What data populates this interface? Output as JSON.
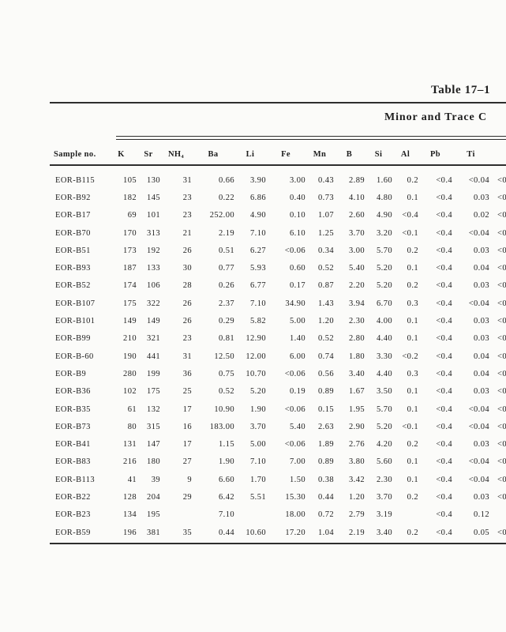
{
  "page": {
    "title": "Table 17–1",
    "subtitle": "Minor and Trace C"
  },
  "table": {
    "sample_header": "Sample no.",
    "columns": [
      "K",
      "Sr",
      "NH₄",
      "Ba",
      "Li",
      "Fe",
      "Mn",
      "B",
      "Si",
      "Al",
      "Pb",
      "Ti",
      ""
    ],
    "rows": [
      {
        "sample": "EOR-B115",
        "values": [
          "105",
          "130",
          "31",
          "0.66",
          "3.90",
          "3.00",
          "0.43",
          "2.89",
          "1.60",
          "0.2",
          "<0.4",
          "<0.04",
          "<0"
        ]
      },
      {
        "sample": "EOR-B92",
        "values": [
          "182",
          "145",
          "23",
          "0.22",
          "6.86",
          "0.40",
          "0.73",
          "4.10",
          "4.80",
          "0.1",
          "<0.4",
          "0.03",
          "<0"
        ]
      },
      {
        "sample": "EOR-B17",
        "values": [
          "69",
          "101",
          "23",
          "252.00",
          "4.90",
          "0.10",
          "1.07",
          "2.60",
          "4.90",
          "<0.4",
          "<0.4",
          "0.02",
          "<0"
        ]
      },
      {
        "sample": "EOR-B70",
        "values": [
          "170",
          "313",
          "21",
          "2.19",
          "7.10",
          "6.10",
          "1.25",
          "3.70",
          "3.20",
          "<0.1",
          "<0.4",
          "<0.04",
          "<0"
        ]
      },
      {
        "sample": "EOR-B51",
        "values": [
          "173",
          "192",
          "26",
          "0.51",
          "6.27",
          "<0.06",
          "0.34",
          "3.00",
          "5.70",
          "0.2",
          "<0.4",
          "0.03",
          "<0"
        ]
      },
      {
        "sample": "EOR-B93",
        "values": [
          "187",
          "133",
          "30",
          "0.77",
          "5.93",
          "0.60",
          "0.52",
          "5.40",
          "5.20",
          "0.1",
          "<0.4",
          "0.04",
          "<0"
        ]
      },
      {
        "sample": "EOR-B52",
        "values": [
          "174",
          "106",
          "28",
          "0.26",
          "6.77",
          "0.17",
          "0.87",
          "2.20",
          "5.20",
          "0.2",
          "<0.4",
          "0.03",
          "<0"
        ]
      },
      {
        "sample": "EOR-B107",
        "values": [
          "175",
          "322",
          "26",
          "2.37",
          "7.10",
          "34.90",
          "1.43",
          "3.94",
          "6.70",
          "0.3",
          "<0.4",
          "<0.04",
          "<0"
        ]
      },
      {
        "sample": "EOR-B101",
        "values": [
          "149",
          "149",
          "26",
          "0.29",
          "5.82",
          "5.00",
          "1.20",
          "2.30",
          "4.00",
          "0.1",
          "<0.4",
          "0.03",
          "<0"
        ]
      },
      {
        "sample": "EOR-B99",
        "values": [
          "210",
          "321",
          "23",
          "0.81",
          "12.90",
          "1.40",
          "0.52",
          "2.80",
          "4.40",
          "0.1",
          "<0.4",
          "0.03",
          "<0"
        ]
      },
      {
        "sample": "EOR-B-60",
        "values": [
          "190",
          "441",
          "31",
          "12.50",
          "12.00",
          "6.00",
          "0.74",
          "1.80",
          "3.30",
          "<0.2",
          "<0.4",
          "0.04",
          "<0"
        ]
      },
      {
        "sample": "EOR-B9",
        "values": [
          "280",
          "199",
          "36",
          "0.75",
          "10.70",
          "<0.06",
          "0.56",
          "3.40",
          "4.40",
          "0.3",
          "<0.4",
          "0.04",
          "<0"
        ]
      },
      {
        "sample": "EOR-B36",
        "values": [
          "102",
          "175",
          "25",
          "0.52",
          "5.20",
          "0.19",
          "0.89",
          "1.67",
          "3.50",
          "0.1",
          "<0.4",
          "0.03",
          "<0"
        ]
      },
      {
        "sample": "EOR-B35",
        "values": [
          "61",
          "132",
          "17",
          "10.90",
          "1.90",
          "<0.06",
          "0.15",
          "1.95",
          "5.70",
          "0.1",
          "<0.4",
          "<0.04",
          "<0"
        ]
      },
      {
        "sample": "EOR-B73",
        "values": [
          "80",
          "315",
          "16",
          "183.00",
          "3.70",
          "5.40",
          "2.63",
          "2.90",
          "5.20",
          "<0.1",
          "<0.4",
          "<0.04",
          "<0"
        ]
      },
      {
        "sample": "EOR-B41",
        "values": [
          "131",
          "147",
          "17",
          "1.15",
          "5.00",
          "<0.06",
          "1.89",
          "2.76",
          "4.20",
          "0.2",
          "<0.4",
          "0.03",
          "<0"
        ]
      },
      {
        "sample": "EOR-B83",
        "values": [
          "216",
          "180",
          "27",
          "1.90",
          "7.10",
          "7.00",
          "0.89",
          "3.80",
          "5.60",
          "0.1",
          "<0.4",
          "<0.04",
          "<0"
        ]
      },
      {
        "sample": "EOR-B113",
        "values": [
          "41",
          "39",
          "9",
          "6.60",
          "1.70",
          "1.50",
          "0.38",
          "3.42",
          "2.30",
          "0.1",
          "<0.4",
          "<0.04",
          "<0"
        ]
      },
      {
        "sample": "EOR-B22",
        "values": [
          "128",
          "204",
          "29",
          "6.42",
          "5.51",
          "15.30",
          "0.44",
          "1.20",
          "3.70",
          "0.2",
          "<0.4",
          "0.03",
          "<0"
        ]
      },
      {
        "sample": "EOR-B23",
        "values": [
          "134",
          "195",
          "",
          "7.10",
          "",
          "18.00",
          "0.72",
          "2.79",
          "3.19",
          "",
          "<0.4",
          "0.12",
          ""
        ]
      },
      {
        "sample": "EOR-B59",
        "values": [
          "196",
          "381",
          "35",
          "0.44",
          "10.60",
          "17.20",
          "1.04",
          "2.19",
          "3.40",
          "0.2",
          "<0.4",
          "0.05",
          "<0"
        ]
      }
    ]
  }
}
